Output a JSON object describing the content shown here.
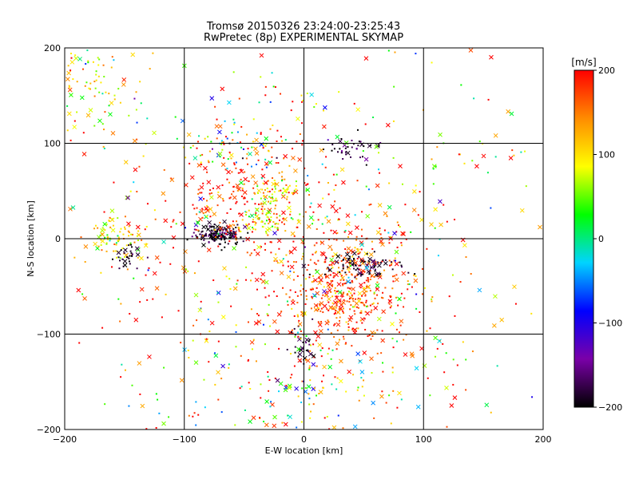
{
  "title_line1": "Tromsø 20150326 23:24:00-23:25:43",
  "title_line2": "RwPretec (8p) EXPERIMENTAL SKYMAP",
  "chart_data": {
    "type": "scatter",
    "xlabel": "E-W location [km]",
    "ylabel": "N-S location [km]",
    "xlim": [
      -200,
      200
    ],
    "ylim": [
      -200,
      200
    ],
    "xticks": [
      -200,
      -100,
      0,
      100,
      200
    ],
    "yticks": [
      -200,
      -100,
      0,
      100,
      200
    ],
    "grid": true,
    "markers": [
      "dot",
      "x"
    ],
    "colorbar": {
      "label": "[m/s]",
      "range": [
        -200,
        200
      ],
      "ticks": [
        200,
        100,
        0,
        -100,
        -200
      ],
      "colormap": [
        "#000000",
        "#7a00a8",
        "#0000ff",
        "#00d4ff",
        "#00ff00",
        "#ffff00",
        "#ff8c00",
        "#ff0000"
      ]
    },
    "clusters": [
      {
        "cx": -72,
        "cy": 5,
        "sx": 10,
        "sy": 6,
        "n": 160,
        "v": -190,
        "vs": 20,
        "xfrac": 0.15
      },
      {
        "cx": -45,
        "cy": 45,
        "sx": 30,
        "sy": 35,
        "n": 220,
        "v": 175,
        "vs": 30,
        "xfrac": 0.15
      },
      {
        "cx": -30,
        "cy": 20,
        "sx": 12,
        "sy": 8,
        "n": 60,
        "v": 80,
        "vs": 40,
        "xfrac": 0.1
      },
      {
        "cx": -20,
        "cy": 50,
        "sx": 8,
        "sy": 6,
        "n": 40,
        "v": 80,
        "vs": 30,
        "xfrac": 0.1
      },
      {
        "cx": 35,
        "cy": -45,
        "sx": 28,
        "sy": 30,
        "n": 400,
        "v": 175,
        "vs": 35,
        "xfrac": 0.2
      },
      {
        "cx": 45,
        "cy": -28,
        "sx": 20,
        "sy": 6,
        "n": 80,
        "v": -190,
        "vs": 20,
        "xfrac": 0.2
      },
      {
        "cx": 30,
        "cy": -70,
        "sx": 18,
        "sy": 18,
        "n": 80,
        "v": 150,
        "vs": 40,
        "xfrac": 0.15
      },
      {
        "cx": -155,
        "cy": 0,
        "sx": 12,
        "sy": 10,
        "n": 80,
        "v": 100,
        "vs": 40,
        "xfrac": 0.2
      },
      {
        "cx": -145,
        "cy": -20,
        "sx": 6,
        "sy": 6,
        "n": 30,
        "v": -190,
        "vs": 15,
        "xfrac": 0.3
      },
      {
        "cx": -175,
        "cy": 160,
        "sx": 20,
        "sy": 30,
        "n": 90,
        "v": 100,
        "vs": 60,
        "xfrac": 0.2
      },
      {
        "cx": 45,
        "cy": 95,
        "sx": 12,
        "sy": 6,
        "n": 40,
        "v": -180,
        "vs": 25,
        "xfrac": 0.2
      },
      {
        "cx": -60,
        "cy": 100,
        "sx": 25,
        "sy": 15,
        "n": 60,
        "v": 40,
        "vs": 120,
        "xfrac": 0.2
      },
      {
        "cx": 0,
        "cy": -110,
        "sx": 5,
        "sy": 12,
        "n": 30,
        "v": -190,
        "vs": 15,
        "xfrac": 0.3
      },
      {
        "cx": 0,
        "cy": -150,
        "sx": 60,
        "sy": 35,
        "n": 180,
        "v": 100,
        "vs": 100,
        "xfrac": 0.25
      },
      {
        "cx": 0,
        "cy": 0,
        "sx": 110,
        "sy": 110,
        "n": 600,
        "v": 120,
        "vs": 110,
        "xfrac": 0.35
      }
    ]
  }
}
